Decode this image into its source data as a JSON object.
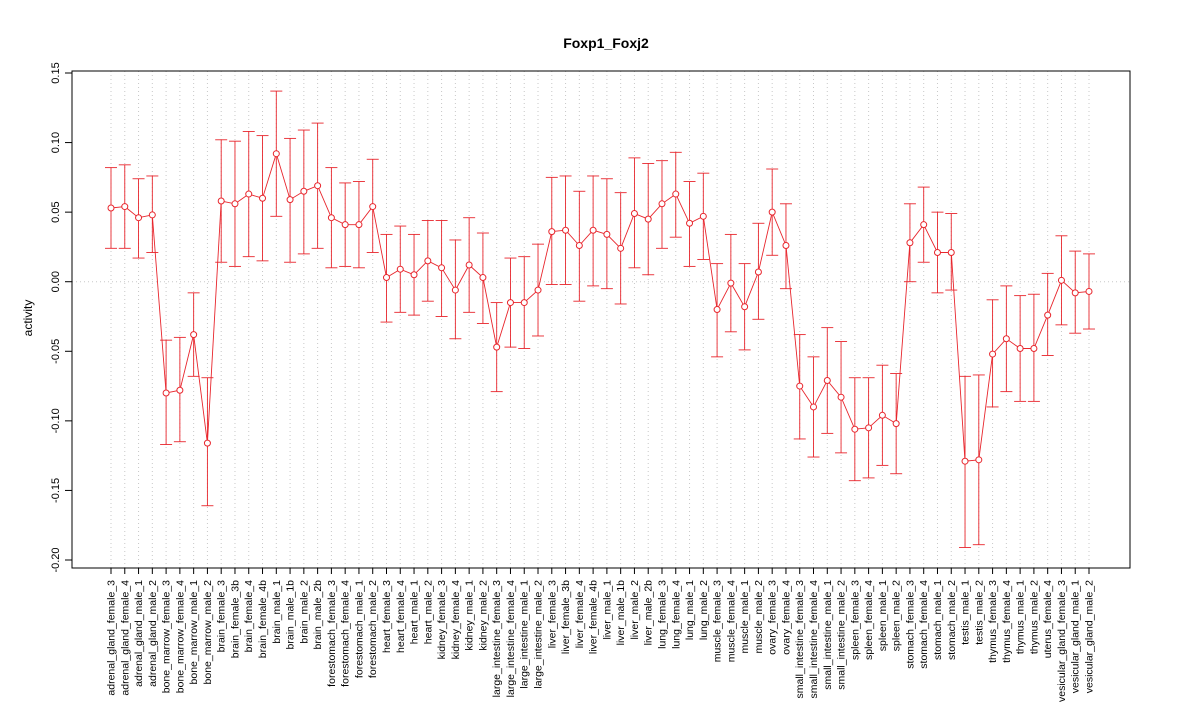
{
  "chart_data": {
    "type": "line",
    "title": "Foxp1_Foxj2",
    "ylabel": "activity",
    "xlabel": "",
    "ylim": [
      -0.2,
      0.15
    ],
    "yticks": [
      -0.2,
      -0.15,
      -0.1,
      -0.05,
      0.0,
      0.05,
      0.1,
      0.15
    ],
    "ytick_labels": [
      "-0.20",
      "-0.15",
      "-0.10",
      "-0.05",
      "0.00",
      "0.05",
      "0.10",
      "0.15"
    ],
    "grid": true,
    "reference_line": 0.0,
    "series_color": "#e8262d",
    "grid_color": "#c8c8c8",
    "categories": [
      "adrenal_gland_female_3",
      "adrenal_gland_female_4",
      "adrenal_gland_male_1",
      "adrenal_gland_male_2",
      "bone_marrow_female_3",
      "bone_marrow_female_4",
      "bone_marrow_male_1",
      "bone_marrow_male_2",
      "brain_female_3",
      "brain_female_3b",
      "brain_female_4",
      "brain_female_4b",
      "brain_male_1",
      "brain_male_1b",
      "brain_male_2",
      "brain_male_2b",
      "forestomach_female_3",
      "forestomach_female_4",
      "forestomach_male_1",
      "forestomach_male_2",
      "heart_female_3",
      "heart_female_4",
      "heart_male_1",
      "heart_male_2",
      "kidney_female_3",
      "kidney_female_4",
      "kidney_male_1",
      "kidney_male_2",
      "large_intestine_female_3",
      "large_intestine_female_4",
      "large_intestine_male_1",
      "large_intestine_male_2",
      "liver_female_3",
      "liver_female_3b",
      "liver_female_4",
      "liver_female_4b",
      "liver_male_1",
      "liver_male_1b",
      "liver_male_2",
      "liver_male_2b",
      "lung_female_3",
      "lung_female_4",
      "lung_male_1",
      "lung_male_2",
      "muscle_female_3",
      "muscle_female_4",
      "muscle_male_1",
      "muscle_male_2",
      "ovary_female_3",
      "ovary_female_4",
      "small_intestine_female_3",
      "small_intestine_female_4",
      "small_intestine_male_1",
      "small_intestine_male_2",
      "spleen_female_3",
      "spleen_female_4",
      "spleen_male_1",
      "spleen_male_2",
      "stomach_female_3",
      "stomach_female_4",
      "stomach_male_1",
      "stomach_male_2",
      "testis_male_1",
      "testis_male_2",
      "thymus_female_3",
      "thymus_female_4",
      "thymus_male_1",
      "thymus_male_2",
      "uterus_female_4",
      "vesicular_gland_female_3",
      "vesicular_gland_male_1",
      "vesicular_gland_male_2"
    ],
    "values": [
      0.053,
      0.054,
      0.046,
      0.048,
      -0.08,
      -0.078,
      -0.038,
      -0.116,
      0.058,
      0.056,
      0.063,
      0.06,
      0.092,
      0.059,
      0.065,
      0.069,
      0.046,
      0.041,
      0.041,
      0.054,
      0.003,
      0.009,
      0.005,
      0.015,
      0.01,
      -0.006,
      0.012,
      0.003,
      -0.047,
      -0.015,
      -0.015,
      -0.006,
      0.036,
      0.037,
      0.026,
      0.037,
      0.034,
      0.024,
      0.049,
      0.045,
      0.056,
      0.063,
      0.042,
      0.047,
      -0.02,
      -0.001,
      -0.018,
      0.007,
      0.05,
      0.026,
      -0.075,
      -0.09,
      -0.071,
      -0.083,
      -0.106,
      -0.105,
      -0.096,
      -0.102,
      0.028,
      0.041,
      0.021,
      0.021,
      -0.129,
      -0.128,
      -0.052,
      -0.041,
      -0.048,
      -0.048,
      -0.024,
      0.001,
      -0.008,
      -0.007
    ],
    "lower": [
      0.024,
      0.024,
      0.017,
      0.021,
      -0.117,
      -0.115,
      -0.068,
      -0.161,
      0.014,
      0.011,
      0.018,
      0.015,
      0.047,
      0.014,
      0.02,
      0.024,
      0.01,
      0.011,
      0.01,
      0.021,
      -0.029,
      -0.022,
      -0.024,
      -0.014,
      -0.025,
      -0.041,
      -0.022,
      -0.03,
      -0.079,
      -0.047,
      -0.048,
      -0.039,
      -0.002,
      -0.002,
      -0.014,
      -0.003,
      -0.005,
      -0.016,
      0.01,
      0.005,
      0.024,
      0.032,
      0.011,
      0.016,
      -0.054,
      -0.036,
      -0.049,
      -0.027,
      0.019,
      -0.005,
      -0.113,
      -0.126,
      -0.109,
      -0.123,
      -0.143,
      -0.141,
      -0.132,
      -0.138,
      0.0,
      0.014,
      -0.008,
      -0.006,
      -0.191,
      -0.189,
      -0.09,
      -0.079,
      -0.086,
      -0.086,
      -0.053,
      -0.031,
      -0.037,
      -0.034
    ],
    "upper": [
      0.082,
      0.084,
      0.074,
      0.076,
      -0.042,
      -0.04,
      -0.008,
      -0.069,
      0.102,
      0.101,
      0.108,
      0.105,
      0.137,
      0.103,
      0.109,
      0.114,
      0.082,
      0.071,
      0.072,
      0.088,
      0.034,
      0.04,
      0.034,
      0.044,
      0.044,
      0.03,
      0.046,
      0.035,
      -0.015,
      0.017,
      0.018,
      0.027,
      0.075,
      0.076,
      0.065,
      0.076,
      0.074,
      0.064,
      0.089,
      0.085,
      0.087,
      0.093,
      0.072,
      0.078,
      0.013,
      0.034,
      0.013,
      0.042,
      0.081,
      0.056,
      -0.038,
      -0.054,
      -0.033,
      -0.043,
      -0.069,
      -0.069,
      -0.06,
      -0.066,
      0.056,
      0.068,
      0.05,
      0.049,
      -0.068,
      -0.067,
      -0.013,
      -0.003,
      -0.01,
      -0.009,
      0.006,
      0.033,
      0.022,
      0.02
    ]
  }
}
